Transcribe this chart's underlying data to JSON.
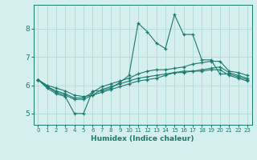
{
  "xlabel": "Humidex (Indice chaleur)",
  "ylabel": "",
  "background_color": "#d5eeee",
  "grid_color": "#b0d8d8",
  "line_color": "#1a7a6e",
  "x_values": [
    0,
    1,
    2,
    3,
    4,
    5,
    6,
    7,
    8,
    9,
    10,
    11,
    12,
    13,
    14,
    15,
    16,
    17,
    18,
    19,
    20,
    21,
    22,
    23
  ],
  "series": [
    [
      6.2,
      5.9,
      5.7,
      5.6,
      5.0,
      5.0,
      5.8,
      5.8,
      5.9,
      6.1,
      6.35,
      8.2,
      7.9,
      7.5,
      7.3,
      8.5,
      7.8,
      7.8,
      6.9,
      6.9,
      6.4,
      6.4,
      6.3,
      6.2
    ],
    [
      6.2,
      5.95,
      5.8,
      5.7,
      5.55,
      5.55,
      5.75,
      5.95,
      6.05,
      6.15,
      6.25,
      6.4,
      6.5,
      6.55,
      6.55,
      6.6,
      6.65,
      6.75,
      6.8,
      6.85,
      6.85,
      6.5,
      6.45,
      6.35
    ],
    [
      6.2,
      5.95,
      5.75,
      5.65,
      5.5,
      5.5,
      5.65,
      5.85,
      5.95,
      6.05,
      6.15,
      6.25,
      6.3,
      6.35,
      6.4,
      6.45,
      6.5,
      6.5,
      6.5,
      6.55,
      6.55,
      6.35,
      6.25,
      6.15
    ],
    [
      6.2,
      6.0,
      5.9,
      5.8,
      5.65,
      5.6,
      5.65,
      5.75,
      5.85,
      5.95,
      6.05,
      6.15,
      6.2,
      6.25,
      6.35,
      6.45,
      6.45,
      6.5,
      6.55,
      6.6,
      6.65,
      6.45,
      6.35,
      6.25
    ]
  ],
  "ylim": [
    4.6,
    8.85
  ],
  "yticks": [
    5,
    6,
    7,
    8
  ],
  "xticks": [
    0,
    1,
    2,
    3,
    4,
    5,
    6,
    7,
    8,
    9,
    10,
    11,
    12,
    13,
    14,
    15,
    16,
    17,
    18,
    19,
    20,
    21,
    22,
    23
  ]
}
